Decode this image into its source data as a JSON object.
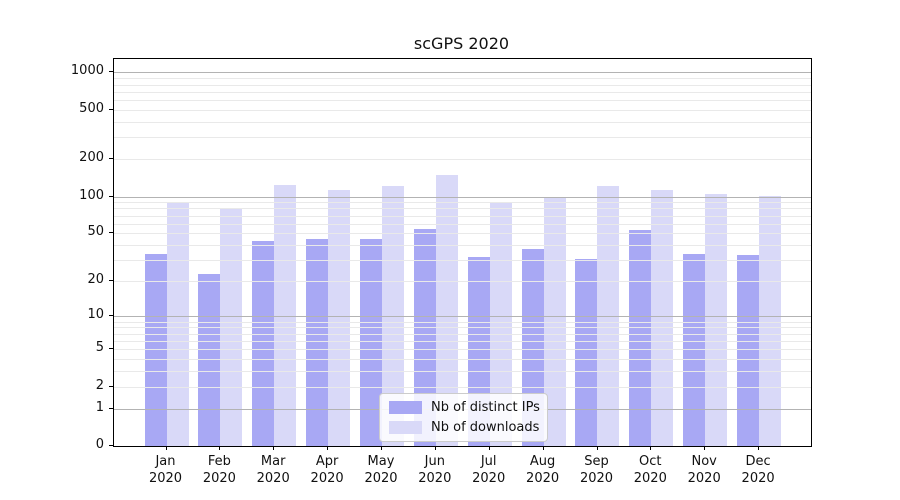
{
  "title": "scGPS 2020",
  "chart_data": {
    "type": "bar",
    "title": "scGPS 2020",
    "categories": [
      "Jan",
      "Feb",
      "Mar",
      "Apr",
      "May",
      "Jun",
      "Jul",
      "Aug",
      "Sep",
      "Oct",
      "Nov",
      "Dec"
    ],
    "category_year": "2020",
    "series": [
      {
        "name": "Nb of distinct IPs",
        "color": "#a8a8f4",
        "values": [
          34,
          23,
          43,
          45,
          45,
          54,
          32,
          37,
          31,
          53,
          34,
          33
        ]
      },
      {
        "name": "Nb of downloads",
        "color": "#d9d9f8",
        "values": [
          90,
          80,
          124,
          113,
          121,
          148,
          89,
          99,
          121,
          112,
          105,
          100
        ]
      }
    ],
    "xlabel": "",
    "ylabel": "",
    "yscale": "log1p",
    "ylim": [
      0,
      1300
    ],
    "y_ticks": [
      0,
      1,
      2,
      5,
      10,
      20,
      50,
      100,
      200,
      500,
      1000
    ],
    "grid": "horizontal, major (powers of 10) + minor, drawn above bars",
    "legend_position": "lower center"
  },
  "colors": {
    "bar_dark": "#a8a8f4",
    "bar_light": "#d9d9f8",
    "grid_major": "#b3b3b3",
    "grid_minor": "#e9e9e9",
    "axis": "#000000",
    "background": "#ffffff"
  }
}
